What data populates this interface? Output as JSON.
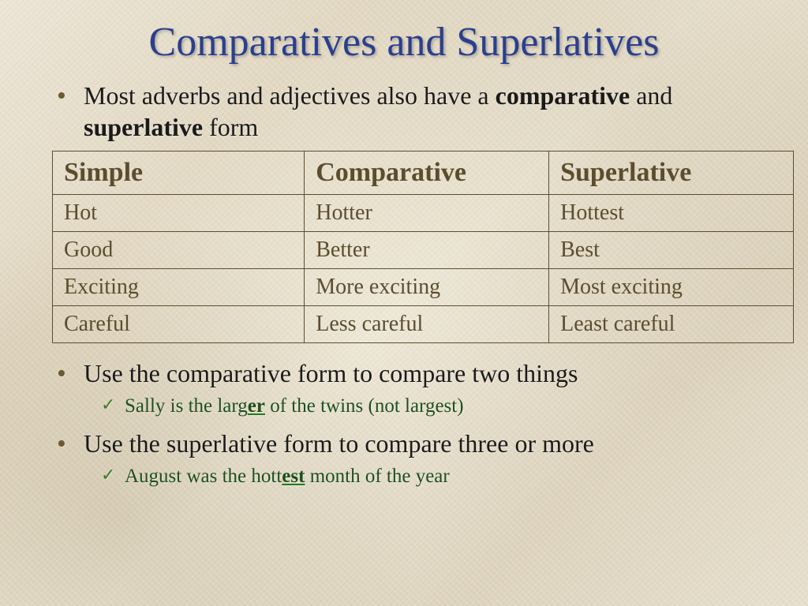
{
  "title": "Comparatives and Superlatives",
  "intro": {
    "pre": "Most adverbs and adjectives also have a ",
    "kw1": "comparative",
    "mid": " and ",
    "kw2": "superlative",
    "post": " form"
  },
  "table": {
    "headers": [
      "Simple",
      "Comparative",
      "Superlative"
    ],
    "rows": [
      [
        "Hot",
        "Hotter",
        "Hottest"
      ],
      [
        "Good",
        "Better",
        "Best"
      ],
      [
        "Exciting",
        "More exciting",
        "Most exciting"
      ],
      [
        "Careful",
        "Less careful",
        "Least careful"
      ]
    ],
    "col_widths": [
      "34%",
      "33%",
      "33%"
    ],
    "border_color": "#5b4d2e",
    "text_color": "#5b4d2e",
    "header_fontsize": 34,
    "cell_fontsize": 28
  },
  "bullets": [
    {
      "text": "Use the comparative form to compare two things",
      "example": {
        "pre": "Sally is the larg",
        "suffix": "er",
        "post": " of the twins (not largest)"
      }
    },
    {
      "text": "Use the superlative form to compare three or more",
      "example": {
        "pre": "August was the hott",
        "suffix": "est",
        "post": " month of the year"
      }
    }
  ],
  "colors": {
    "title": "#2b3f8f",
    "body_text": "#1a1a1a",
    "bullet_marker": "#6b5a34",
    "example_text": "#1d4f1d",
    "checkmark": "#3a7a2a",
    "underline": "#1d7a1d"
  },
  "typography": {
    "title_fontsize": 52,
    "body_fontsize": 32,
    "example_fontsize": 25,
    "font_family": "Times New Roman"
  }
}
